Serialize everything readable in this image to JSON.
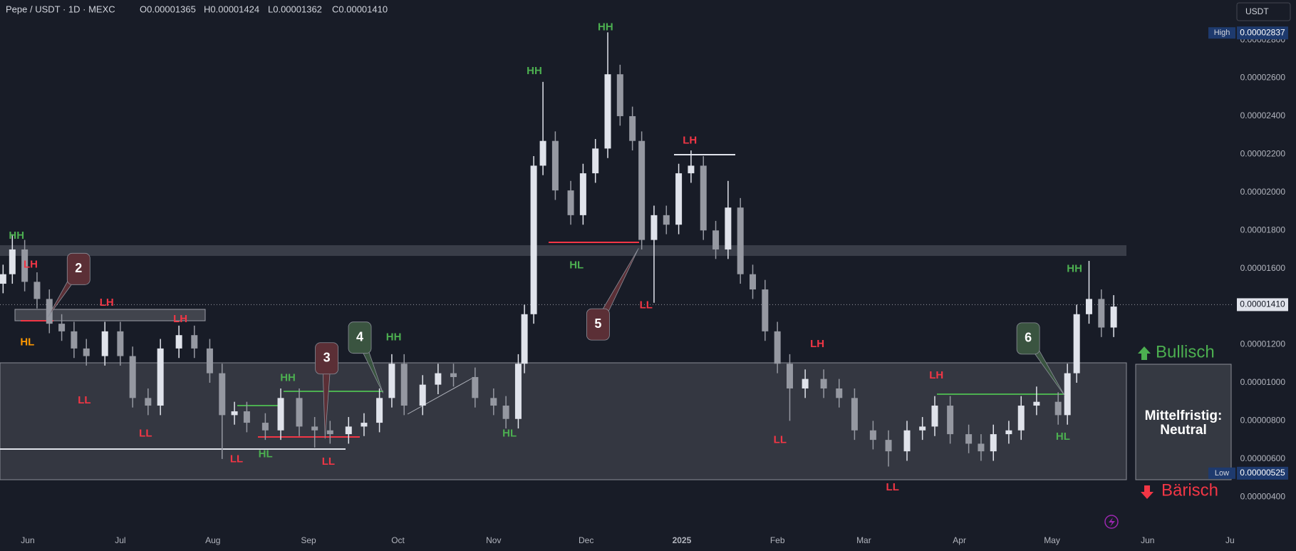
{
  "chart_data": {
    "type": "candlestick",
    "header": {
      "symbol": "Pepe / USDT · 1D · MEXC",
      "ohlc": [
        "O0.00001365",
        "H0.00001424",
        "L0.00001362",
        "C0.00001410"
      ]
    },
    "currency_button": "USDT",
    "x": [
      1,
      4,
      8,
      12,
      16,
      20,
      24,
      28,
      34,
      39,
      43,
      48,
      52,
      58,
      63,
      68,
      72,
      76,
      80,
      86,
      91,
      97,
      102,
      107,
      113,
      118,
      123,
      127,
      131,
      137,
      142,
      147,
      154,
      160,
      164,
      168,
      170,
      173,
      176,
      180,
      185,
      189,
      193,
      197,
      201,
      205,
      208,
      212,
      216,
      220,
      224,
      228,
      232,
      236,
      240,
      244,
      248,
      252,
      256,
      261,
      267,
      272,
      277,
      283,
      288,
      294,
      299,
      303,
      308,
      314,
      318,
      322,
      327,
      331,
      336,
      343,
      346,
      349,
      353,
      357,
      361
    ],
    "open": [
      1.52e-05,
      1.57e-05,
      1.7e-05,
      1.53e-05,
      1.44e-05,
      1.31e-05,
      1.27e-05,
      1.18e-05,
      1.14e-05,
      1.27e-05,
      1.14e-05,
      9.2e-06,
      8.8e-06,
      1.18e-05,
      1.25e-05,
      1.18e-05,
      1.05e-05,
      8.3e-06,
      8.5e-06,
      7.9e-06,
      7.5e-06,
      9.2e-06,
      7.7e-06,
      7.5e-06,
      7.3e-06,
      7.7e-06,
      7.9e-06,
      9.2e-06,
      1.1e-05,
      8.8e-06,
      9.9e-06,
      1.05e-05,
      1.03e-05,
      9.2e-06,
      8.8e-06,
      8.1e-06,
      1.1e-05,
      1.36e-05,
      2.14e-05,
      2.27e-05,
      2.01e-05,
      1.88e-05,
      2.1e-05,
      2.23e-05,
      2.62e-05,
      2.4e-05,
      2.27e-05,
      1.75e-05,
      1.88e-05,
      1.83e-05,
      2.1e-05,
      2.14e-05,
      1.8e-05,
      1.7e-05,
      1.92e-05,
      1.57e-05,
      1.49e-05,
      1.27e-05,
      1.1e-05,
      9.7e-06,
      1.02e-05,
      9.7e-06,
      9.2e-06,
      7.5e-06,
      7e-06,
      6.4e-06,
      7.5e-06,
      7.7e-06,
      8.8e-06,
      7.3e-06,
      6.8e-06,
      6.4e-06,
      7.3e-06,
      7.5e-06,
      8.8e-06,
      9e-06,
      8.3e-06,
      1.05e-05,
      1.36e-05,
      1.44e-05,
      1.29e-05
    ],
    "high": [
      1.62e-05,
      1.78e-05,
      1.75e-05,
      1.58e-05,
      1.49e-05,
      1.36e-05,
      1.32e-05,
      1.23e-05,
      1.32e-05,
      1.32e-05,
      1.19e-05,
      9.7e-06,
      1.23e-05,
      1.3e-05,
      1.3e-05,
      1.23e-05,
      1.1e-05,
      9e-06,
      9e-06,
      8.4e-06,
      9.7e-06,
      9.7e-06,
      8.2e-06,
      8e-06,
      8.2e-06,
      8.4e-06,
      9.7e-06,
      1.15e-05,
      1.15e-05,
      1.04e-05,
      1.1e-05,
      1.1e-05,
      1.08e-05,
      9.7e-06,
      9.3e-06,
      1.15e-05,
      1.41e-05,
      2.19e-05,
      2.58e-05,
      2.32e-05,
      2.06e-05,
      2.15e-05,
      2.28e-05,
      2.84e-05,
      2.67e-05,
      2.45e-05,
      2.32e-05,
      1.93e-05,
      1.93e-05,
      2.15e-05,
      2.22e-05,
      2.19e-05,
      1.85e-05,
      2.06e-05,
      1.97e-05,
      1.62e-05,
      1.54e-05,
      1.32e-05,
      1.15e-05,
      1.07e-05,
      1.07e-05,
      1.02e-05,
      9.7e-06,
      8e-06,
      7.5e-06,
      8e-06,
      8.2e-06,
      9.3e-06,
      9.3e-06,
      7.8e-06,
      7.3e-06,
      7.8e-06,
      8e-06,
      9.3e-06,
      9.8e-06,
      9.5e-06,
      1.1e-05,
      1.41e-05,
      1.64e-05,
      1.49e-05,
      1.46e-05
    ],
    "low": [
      1.47e-05,
      1.52e-05,
      1.48e-05,
      1.39e-05,
      1.26e-05,
      1.22e-05,
      1.13e-05,
      1.09e-05,
      1.09e-05,
      1.09e-05,
      8.7e-06,
      8.3e-06,
      8.3e-06,
      1.13e-05,
      1.13e-05,
      1e-05,
      6e-06,
      7.8e-06,
      7.4e-06,
      7e-06,
      7e-06,
      7.2e-06,
      6.6e-06,
      6.8e-06,
      6.8e-06,
      7.2e-06,
      7.4e-06,
      8.7e-06,
      8.3e-06,
      8.3e-06,
      9.4e-06,
      9.8e-06,
      8.7e-06,
      8.3e-06,
      7.6e-06,
      7.6e-06,
      1.05e-05,
      1.31e-05,
      2.09e-05,
      1.96e-05,
      1.83e-05,
      1.83e-05,
      2.05e-05,
      2.18e-05,
      2.35e-05,
      2.22e-05,
      1.7e-05,
      1.42e-05,
      1.78e-05,
      1.78e-05,
      2.05e-05,
      1.75e-05,
      1.65e-05,
      1.65e-05,
      1.52e-05,
      1.44e-05,
      1.22e-05,
      1.05e-05,
      8e-06,
      9.2e-06,
      9.2e-06,
      8.7e-06,
      7e-06,
      6.5e-06,
      5.6e-06,
      5.9e-06,
      7e-06,
      7.2e-06,
      6.8e-06,
      6.3e-06,
      5.9e-06,
      5.9e-06,
      6.8e-06,
      7e-06,
      8.3e-06,
      7.8e-06,
      7.8e-06,
      1e-05,
      1.31e-05,
      1.24e-05,
      1.24e-05
    ],
    "close": [
      1.57e-05,
      1.7e-05,
      1.53e-05,
      1.44e-05,
      1.31e-05,
      1.27e-05,
      1.18e-05,
      1.14e-05,
      1.27e-05,
      1.14e-05,
      9.2e-06,
      8.8e-06,
      1.18e-05,
      1.25e-05,
      1.18e-05,
      1.05e-05,
      8.3e-06,
      8.5e-06,
      7.9e-06,
      7.5e-06,
      9.2e-06,
      7.7e-06,
      7.5e-06,
      7.3e-06,
      7.7e-06,
      7.9e-06,
      9.2e-06,
      1.1e-05,
      8.8e-06,
      9.9e-06,
      1.05e-05,
      1.03e-05,
      9.2e-06,
      8.8e-06,
      8.1e-06,
      1.1e-05,
      1.36e-05,
      2.14e-05,
      2.27e-05,
      2.01e-05,
      1.88e-05,
      2.1e-05,
      2.23e-05,
      2.62e-05,
      2.4e-05,
      2.27e-05,
      1.75e-05,
      1.88e-05,
      1.83e-05,
      2.1e-05,
      2.14e-05,
      1.8e-05,
      1.7e-05,
      1.92e-05,
      1.57e-05,
      1.49e-05,
      1.27e-05,
      1.1e-05,
      9.7e-06,
      1.02e-05,
      9.7e-06,
      9.2e-06,
      7.5e-06,
      7e-06,
      6.4e-06,
      7.5e-06,
      7.7e-06,
      8.8e-06,
      7.3e-06,
      6.8e-06,
      6.4e-06,
      7.3e-06,
      7.5e-06,
      8.8e-06,
      9e-06,
      8.3e-06,
      1.05e-05,
      1.36e-05,
      1.44e-05,
      1.29e-05,
      1.4e-05
    ],
    "up_color": "#e0e3eb",
    "down_color": "#9598a1",
    "xlim": [
      0,
      400
    ],
    "xticks": [
      {
        "value": 9,
        "label": "Jun"
      },
      {
        "value": 39,
        "label": "Jul"
      },
      {
        "value": 69,
        "label": "Aug"
      },
      {
        "value": 100,
        "label": "Sep"
      },
      {
        "value": 129,
        "label": "Oct"
      },
      {
        "value": 160,
        "label": "Nov"
      },
      {
        "value": 190,
        "label": "Dec"
      },
      {
        "value": 221,
        "label": "2025"
      },
      {
        "value": 252,
        "label": "Feb"
      },
      {
        "value": 280,
        "label": "Mar"
      },
      {
        "value": 311,
        "label": "Apr"
      },
      {
        "value": 341,
        "label": "May"
      },
      {
        "value": 372,
        "label": "Jun"
      },
      {
        "value": 399,
        "label": "Jul"
      }
    ],
    "ylim": [
      2.4e-06,
      3.01e-05
    ],
    "yticks": [
      {
        "value": 4e-06,
        "label": "0.00000400"
      },
      {
        "value": 6e-06,
        "label": "0.00000600"
      },
      {
        "value": 8e-06,
        "label": "0.00000800"
      },
      {
        "value": 1e-05,
        "label": "0.00001000"
      },
      {
        "value": 1.2e-05,
        "label": "0.00001200"
      },
      {
        "value": 1.4e-05,
        "label": "0.00001400"
      },
      {
        "value": 1.6e-05,
        "label": "0.00001600"
      },
      {
        "value": 1.8e-05,
        "label": "0.00001800"
      },
      {
        "value": 2e-05,
        "label": "0.00002000"
      },
      {
        "value": 2.2e-05,
        "label": "0.00002200"
      },
      {
        "value": 2.4e-05,
        "label": "0.00002400"
      },
      {
        "value": 2.6e-05,
        "label": "0.00002600"
      },
      {
        "value": 2.8e-05,
        "label": "0.00002800"
      }
    ],
    "grid": false,
    "high_marker": {
      "title": "High",
      "value": 2.837e-05,
      "label": "0.00002837"
    },
    "low_marker": {
      "title": "Low",
      "value": 5.25e-06,
      "label": "0.00000525"
    },
    "current_price": {
      "value": 1.41e-05,
      "label": "0.00001410"
    },
    "annotations": [
      {
        "text": "HH",
        "color": "#4caf50"
      },
      {
        "text": "LH",
        "color": "#f23645"
      },
      {
        "text": "HL",
        "color": "#ff9800"
      },
      {
        "text": "LH",
        "color": "#f23645"
      },
      {
        "text": "LL",
        "color": "#f23645"
      },
      {
        "text": "LL",
        "color": "#f23645"
      },
      {
        "text": "LH",
        "color": "#f23645"
      },
      {
        "text": "LL",
        "color": "#f23645"
      },
      {
        "text": "HL",
        "color": "#4caf50"
      },
      {
        "text": "HH",
        "color": "#4caf50"
      },
      {
        "text": "LL",
        "color": "#f23645"
      },
      {
        "text": "HH",
        "color": "#4caf50"
      },
      {
        "text": "HL",
        "color": "#4caf50"
      },
      {
        "text": "HH",
        "color": "#4caf50"
      },
      {
        "text": "HH",
        "color": "#4caf50"
      },
      {
        "text": "HL",
        "color": "#4caf50"
      },
      {
        "text": "LL",
        "color": "#f23645"
      },
      {
        "text": "LH",
        "color": "#f23645"
      },
      {
        "text": "LH",
        "color": "#f23645"
      },
      {
        "text": "LL",
        "color": "#f23645"
      },
      {
        "text": "LL",
        "color": "#f23645"
      },
      {
        "text": "LH",
        "color": "#f23645"
      },
      {
        "text": "HL",
        "color": "#4caf50"
      },
      {
        "text": "HH",
        "color": "#4caf50"
      }
    ],
    "callouts": [
      {
        "text": "2",
        "color": "#5b2f36"
      },
      {
        "text": "3",
        "color": "#5b2f36"
      },
      {
        "text": "4",
        "color": "#3a5440"
      },
      {
        "text": "5",
        "color": "#5b2f36"
      },
      {
        "text": "6",
        "color": "#3a5440"
      }
    ],
    "bullish_label": "Bullisch",
    "bearish_label": "Bärisch",
    "zone_label": [
      "Mittelfristig:",
      "Neutral"
    ]
  }
}
